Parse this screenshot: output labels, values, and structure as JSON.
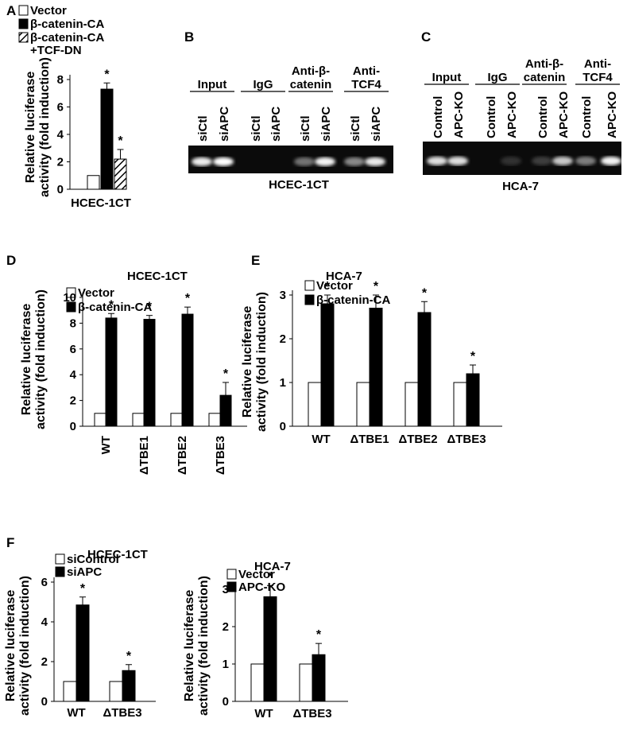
{
  "panels": {
    "A": {
      "letter": "A"
    },
    "B": {
      "letter": "B",
      "caption": "HCEC-1CT",
      "groups": [
        "Input",
        "IgG",
        "Anti-β-\ncatenin",
        "Anti-\nTCF4"
      ],
      "lanes": [
        "siCtl",
        "siAPC",
        "siCtl",
        "siAPC",
        "siCtl",
        "siAPC",
        "siCtl",
        "siAPC"
      ]
    },
    "C": {
      "letter": "C",
      "caption": "HCA-7",
      "groups": [
        "Input",
        "IgG",
        "Anti-β-\ncatenin",
        "Anti-\nTCF4"
      ],
      "lanes": [
        "Control",
        "APC-KO",
        "Control",
        "APC-KO",
        "Control",
        "APC-KO",
        "Control",
        "APC-KO"
      ]
    },
    "D": {
      "letter": "D"
    },
    "E": {
      "letter": "E"
    },
    "F": {
      "letter": "F"
    }
  },
  "gel_bands": {
    "B": [
      0.92,
      1.0,
      0.0,
      0.0,
      0.35,
      0.95,
      0.45,
      0.9
    ],
    "C": [
      0.85,
      0.85,
      0.0,
      0.05,
      0.1,
      0.75,
      0.4,
      0.95
    ]
  },
  "chart_data": [
    {
      "id": "A",
      "type": "bar",
      "title": "",
      "ylabel": "Relative luciferase\nactivity (fold induction)",
      "ylim": [
        0,
        8
      ],
      "yticks": [
        0,
        2,
        4,
        6,
        8
      ],
      "categories": [
        "HCEC-1CT"
      ],
      "legend": [
        "Vector",
        "β-catenin-CA",
        "β-catenin-CA\n+TCF-DN"
      ],
      "series": [
        {
          "name": "Vector",
          "fill": "white",
          "values": [
            1.0
          ],
          "errors": [
            0
          ]
        },
        {
          "name": "β-catenin-CA",
          "fill": "black",
          "values": [
            7.3
          ],
          "errors": [
            0.45
          ]
        },
        {
          "name": "β-catenin-CA+TCF-DN",
          "fill": "hatch",
          "values": [
            2.2
          ],
          "errors": [
            0.7
          ]
        }
      ],
      "annotations": [
        "",
        "*",
        "*"
      ]
    },
    {
      "id": "D",
      "type": "bar",
      "title": "HCEC-1CT",
      "ylabel": "Relative luciferase\nactivity (fold induction)",
      "ylim": [
        0,
        10
      ],
      "yticks": [
        0,
        2,
        4,
        6,
        8,
        10
      ],
      "categories": [
        "WT",
        "ΔTBE1",
        "ΔTBE2",
        "ΔTBE3"
      ],
      "legend": [
        "Vector",
        "β-catenin-CA"
      ],
      "series": [
        {
          "name": "Vector",
          "fill": "white",
          "values": [
            1,
            1,
            1,
            1
          ],
          "errors": [
            0,
            0,
            0,
            0
          ]
        },
        {
          "name": "β-catenin-CA",
          "fill": "black",
          "values": [
            8.4,
            8.3,
            8.7,
            2.4
          ],
          "errors": [
            0.35,
            0.3,
            0.55,
            1.0
          ]
        }
      ],
      "annotations": [
        "*",
        "*",
        "*",
        "*"
      ]
    },
    {
      "id": "E",
      "type": "bar",
      "title": "HCA-7",
      "ylabel": "Relative luciferase\nactivity (fold induction)",
      "ylim": [
        0,
        3
      ],
      "yticks": [
        0,
        1,
        2,
        3
      ],
      "categories": [
        "WT",
        "ΔTBE1",
        "ΔTBE2",
        "ΔTBE3"
      ],
      "legend": [
        "Vector",
        "β-catenin-CA"
      ],
      "series": [
        {
          "name": "Vector",
          "fill": "white",
          "values": [
            1,
            1,
            1,
            1
          ],
          "errors": [
            0,
            0,
            0,
            0
          ]
        },
        {
          "name": "β-catenin-CA",
          "fill": "black",
          "values": [
            2.8,
            2.7,
            2.6,
            1.2
          ],
          "errors": [
            0.2,
            0.3,
            0.25,
            0.2
          ]
        }
      ],
      "annotations": [
        "*",
        "*",
        "*",
        "*"
      ]
    },
    {
      "id": "F1",
      "type": "bar",
      "title": "HCEC-1CT",
      "ylabel": "Relative luciferase\nactivity (fold induction)",
      "ylim": [
        0,
        6
      ],
      "yticks": [
        0,
        2,
        4,
        6
      ],
      "categories": [
        "WT",
        "ΔTBE3"
      ],
      "legend": [
        "siControl",
        "siAPC"
      ],
      "series": [
        {
          "name": "siControl",
          "fill": "white",
          "values": [
            1,
            1
          ],
          "errors": [
            0,
            0
          ]
        },
        {
          "name": "siAPC",
          "fill": "black",
          "values": [
            4.85,
            1.55
          ],
          "errors": [
            0.4,
            0.3
          ]
        }
      ],
      "annotations": [
        "*",
        "*"
      ]
    },
    {
      "id": "F2",
      "type": "bar",
      "title": "HCA-7",
      "ylabel": "Relative luciferase\nactivity (fold induction)",
      "ylim": [
        0,
        3
      ],
      "yticks": [
        0,
        1,
        2,
        3
      ],
      "categories": [
        "WT",
        "ΔTBE3"
      ],
      "legend": [
        "Vector",
        "APC-KO"
      ],
      "series": [
        {
          "name": "Vector",
          "fill": "white",
          "values": [
            1,
            1
          ],
          "errors": [
            0,
            0
          ]
        },
        {
          "name": "APC-KO",
          "fill": "black",
          "values": [
            2.8,
            1.25
          ],
          "errors": [
            0.3,
            0.3
          ]
        }
      ],
      "annotations": [
        "*",
        "*"
      ]
    }
  ]
}
